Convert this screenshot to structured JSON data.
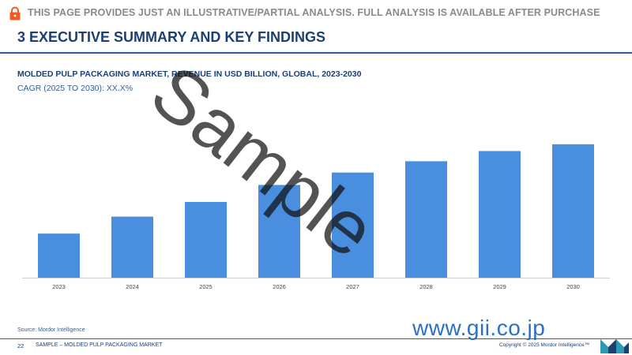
{
  "banner": {
    "text": "THIS PAGE PROVIDES JUST AN ILLUSTRATIVE/PARTIAL ANALYSIS. FULL ANALYSIS IS AVAILABLE AFTER PURCHASE",
    "icon": "lock-icon",
    "icon_color": "#f05a22"
  },
  "section": {
    "title": "3 EXECUTIVE SUMMARY AND KEY FINDINGS"
  },
  "chart_header": {
    "title": "MOLDED PULP PACKAGING MARKET, REVENUE IN USD BILLION, GLOBAL, 2023-2030",
    "cagr": "CAGR (2025 TO 2030): XX.X%"
  },
  "chart_data": {
    "type": "bar",
    "title": "MOLDED PULP PACKAGING MARKET, REVENUE IN USD BILLION, GLOBAL, 2023-2030",
    "categories": [
      "2023",
      "2024",
      "2025",
      "2026",
      "2027",
      "2028",
      "2029",
      "2030"
    ],
    "values": [
      3.9,
      5.4,
      6.7,
      8.2,
      9.3,
      10.3,
      11.2,
      11.8
    ],
    "ylim": [
      0,
      12
    ],
    "bar_color": "#4a8ee0",
    "grid": false,
    "legend": "none"
  },
  "watermark": {
    "text": "Sample"
  },
  "footer": {
    "source": "Source: Mordor Intelligence",
    "page_number": "22",
    "label": "SAMPLE – MOLDED PULP PACKAGING MARKET",
    "copyright": "Copyright © 2025 Mordor Intelligence™",
    "gii": "www.gii.co.jp"
  },
  "colors": {
    "navy": "#1c3f74",
    "accent_blue": "#2f5f9a",
    "gii_blue": "#2c6fc9",
    "logo_teal": "#2a9bb3"
  }
}
